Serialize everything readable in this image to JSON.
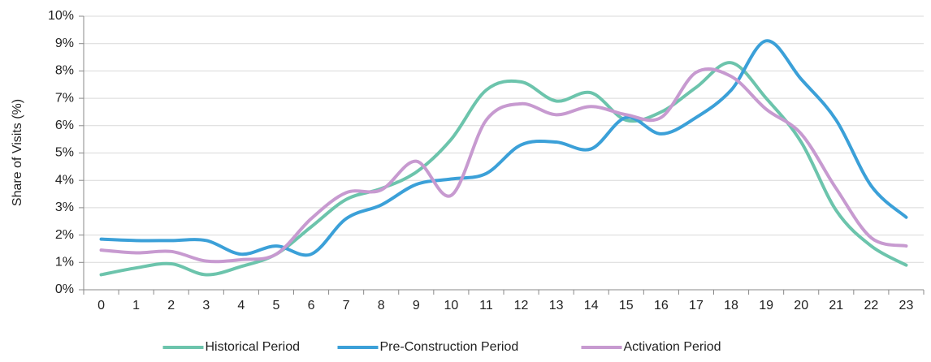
{
  "chart_data": {
    "type": "line",
    "y_label": "Share of Visits (%)",
    "categories": [
      "0",
      "1",
      "2",
      "3",
      "4",
      "5",
      "6",
      "7",
      "8",
      "9",
      "10",
      "11",
      "12",
      "13",
      "14",
      "15",
      "16",
      "17",
      "18",
      "19",
      "20",
      "21",
      "22",
      "23"
    ],
    "series": [
      {
        "name": "Historical Period",
        "color": "#6cc4ac",
        "values": [
          0.55,
          0.8,
          0.95,
          0.55,
          0.85,
          1.3,
          2.3,
          3.3,
          3.7,
          4.3,
          5.5,
          7.3,
          7.6,
          6.9,
          7.2,
          6.2,
          6.5,
          7.4,
          8.3,
          7.0,
          5.4,
          2.9,
          1.6,
          0.9
        ]
      },
      {
        "name": "Pre-Construction Period",
        "color": "#3ba0d8",
        "values": [
          1.85,
          1.8,
          1.8,
          1.8,
          1.3,
          1.6,
          1.3,
          2.6,
          3.1,
          3.85,
          4.05,
          4.25,
          5.3,
          5.4,
          5.15,
          6.3,
          5.7,
          6.3,
          7.3,
          9.1,
          7.7,
          6.2,
          3.8,
          2.65
        ]
      },
      {
        "name": "Activation Period",
        "color": "#c79ad0",
        "values": [
          1.45,
          1.35,
          1.4,
          1.05,
          1.1,
          1.3,
          2.6,
          3.55,
          3.65,
          4.7,
          3.45,
          6.2,
          6.8,
          6.4,
          6.7,
          6.4,
          6.3,
          7.95,
          7.8,
          6.6,
          5.7,
          3.7,
          1.9,
          1.6
        ]
      }
    ],
    "ylim": [
      0,
      10
    ],
    "yticks": [
      {
        "value": 0,
        "label": "0%"
      },
      {
        "value": 1,
        "label": "1%"
      },
      {
        "value": 2,
        "label": "2%"
      },
      {
        "value": 3,
        "label": "3%"
      },
      {
        "value": 4,
        "label": "4%"
      },
      {
        "value": 5,
        "label": "5%"
      },
      {
        "value": 6,
        "label": "6%"
      },
      {
        "value": 7,
        "label": "7%"
      },
      {
        "value": 8,
        "label": "8%"
      },
      {
        "value": 9,
        "label": "9%"
      },
      {
        "value": 10,
        "label": "10%"
      }
    ],
    "grid": true,
    "legend": "bottom"
  }
}
